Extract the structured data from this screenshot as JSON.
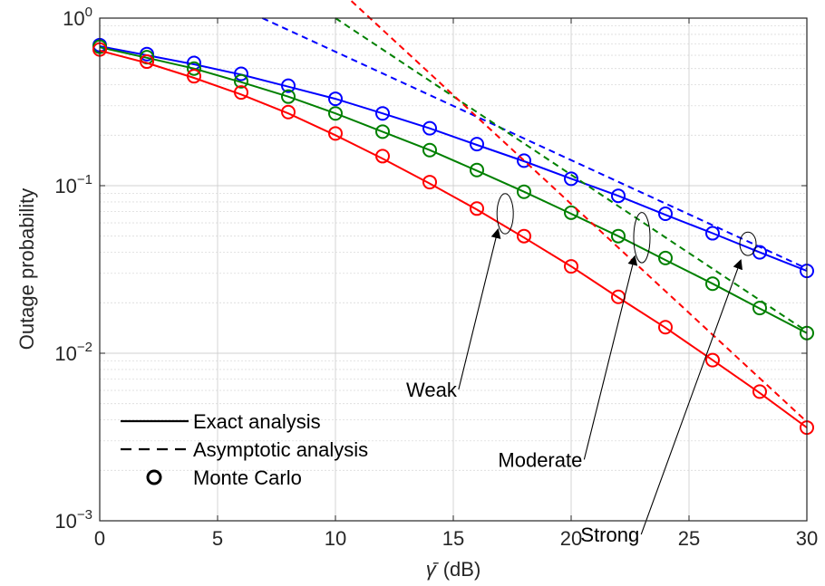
{
  "chart_data": {
    "type": "line",
    "xlabel": "(dB)",
    "xlabel_symbol": "γ̄",
    "ylabel": "Outage probability",
    "xlim": [
      0,
      30
    ],
    "ylim": [
      0.001,
      1
    ],
    "yscale": "log",
    "grid": true,
    "x_ticks": [
      0,
      5,
      10,
      15,
      20,
      25,
      30
    ],
    "y_ticks": [
      {
        "value": 0.001,
        "base": "10",
        "exp": "−3"
      },
      {
        "value": 0.01,
        "base": "10",
        "exp": "−2"
      },
      {
        "value": 0.1,
        "base": "10",
        "exp": "−1"
      },
      {
        "value": 1,
        "base": "10",
        "exp": "0"
      }
    ],
    "legend": {
      "placement": "bottom-left",
      "entries": [
        {
          "label": "Exact analysis",
          "style": "solid"
        },
        {
          "label": "Asymptotic analysis",
          "style": "dashed"
        },
        {
          "label": "Monte Carlo",
          "style": "marker"
        }
      ]
    },
    "annotations": [
      {
        "text": "Weak",
        "text_x": 13.0,
        "text_y": 0.0055,
        "arrow_to_x": 16.9,
        "arrow_to_y": 0.055,
        "ellipse_x": 17.2,
        "ellipse_y": 0.068,
        "ellipse_ry_decades": 0.12
      },
      {
        "text": "Moderate",
        "text_x": 16.9,
        "text_y": 0.0021,
        "arrow_to_x": 22.7,
        "arrow_to_y": 0.038,
        "ellipse_x": 23.0,
        "ellipse_y": 0.049,
        "ellipse_ry_decades": 0.15
      },
      {
        "text": "Strong",
        "text_x": 20.4,
        "text_y": 0.00075,
        "arrow_to_x": 27.2,
        "arrow_to_y": 0.036,
        "ellipse_x": 27.5,
        "ellipse_y": 0.045,
        "ellipse_ry_decades": 0.07
      }
    ],
    "series": [
      {
        "color": "#0000ff",
        "x": [
          0,
          2,
          4,
          6,
          8,
          10,
          12,
          14,
          16,
          18,
          20,
          22,
          24,
          26,
          28,
          30
        ],
        "exact": [
          0.68,
          0.6,
          0.53,
          0.46,
          0.39,
          0.33,
          0.27,
          0.22,
          0.175,
          0.14,
          0.11,
          0.087,
          0.067,
          0.052,
          0.04,
          0.031
        ],
        "monte_carlo": [
          0.69,
          0.61,
          0.54,
          0.465,
          0.395,
          0.33,
          0.27,
          0.22,
          0.177,
          0.141,
          0.11,
          0.087,
          0.068,
          0.052,
          0.04,
          0.031
        ],
        "asymptotic": {
          "x": [
            6.9,
            30
          ],
          "y": [
            1.0,
            0.032
          ]
        }
      },
      {
        "color": "#008000",
        "x": [
          0,
          2,
          4,
          6,
          8,
          10,
          12,
          14,
          16,
          18,
          20,
          22,
          24,
          26,
          28,
          30
        ],
        "exact": [
          0.67,
          0.58,
          0.5,
          0.415,
          0.34,
          0.27,
          0.21,
          0.163,
          0.123,
          0.092,
          0.068,
          0.05,
          0.036,
          0.026,
          0.0185,
          0.0132
        ],
        "monte_carlo": [
          0.675,
          0.585,
          0.5,
          0.42,
          0.34,
          0.27,
          0.21,
          0.163,
          0.124,
          0.092,
          0.069,
          0.05,
          0.037,
          0.026,
          0.0186,
          0.0132
        ],
        "asymptotic": {
          "x": [
            10.0,
            30
          ],
          "y": [
            1.0,
            0.0135
          ]
        }
      },
      {
        "color": "#ff0000",
        "x": [
          0,
          2,
          4,
          6,
          8,
          10,
          12,
          14,
          16,
          18,
          20,
          22,
          24,
          26,
          28,
          30
        ],
        "exact": [
          0.64,
          0.54,
          0.44,
          0.35,
          0.27,
          0.2,
          0.145,
          0.103,
          0.072,
          0.049,
          0.033,
          0.0215,
          0.0142,
          0.0091,
          0.0058,
          0.0036
        ],
        "monte_carlo": [
          0.65,
          0.55,
          0.45,
          0.36,
          0.275,
          0.205,
          0.15,
          0.105,
          0.073,
          0.05,
          0.033,
          0.0217,
          0.0143,
          0.0091,
          0.0059,
          0.0036
        ],
        "asymptotic": {
          "x": [
            10.0,
            30
          ],
          "y": [
            1.55,
            0.0039
          ]
        }
      }
    ]
  }
}
